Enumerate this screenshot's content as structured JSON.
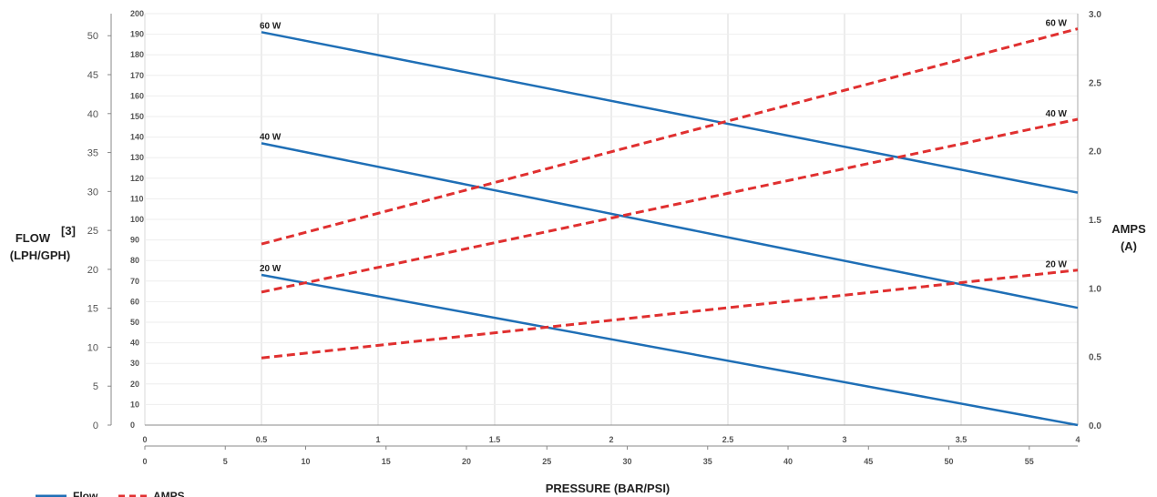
{
  "chart_data": {
    "type": "line",
    "xlabel": "PRESSURE (BAR/PSI)",
    "ylabel_left": "FLOW",
    "ylabel_left_units": "(LPH/GPH)",
    "ylabel_left_note": "[3]",
    "ylabel_right": "AMPS",
    "ylabel_right_units": "(A)",
    "x_bar_range": [
      0,
      4
    ],
    "x_bar_ticks": [
      "0",
      "0.5",
      "1",
      "1.5",
      "2",
      "2.5",
      "3",
      "3.5",
      "4"
    ],
    "x_psi_ticks": [
      "0",
      "5",
      "10",
      "15",
      "20",
      "25",
      "30",
      "35",
      "40",
      "45",
      "50",
      "55"
    ],
    "y_lph_range": [
      0,
      200
    ],
    "y_lph_ticks": [
      "0",
      "10",
      "20",
      "30",
      "40",
      "50",
      "60",
      "70",
      "80",
      "90",
      "100",
      "110",
      "120",
      "130",
      "140",
      "150",
      "160",
      "170",
      "180",
      "190",
      "200"
    ],
    "y_gph_ticks": [
      "0",
      "5",
      "10",
      "15",
      "20",
      "25",
      "30",
      "35",
      "40",
      "45",
      "50"
    ],
    "y_amps_range": [
      0,
      3
    ],
    "y_amps_ticks": [
      "0.0",
      "0.5",
      "1.0",
      "1.5",
      "2.0",
      "2.5",
      "3.0"
    ],
    "grid": true,
    "legend": {
      "position": "bottom-left",
      "entries": [
        "Flow",
        "AMPS"
      ]
    },
    "colors": {
      "flow": "#1f6fb6",
      "amps": "#e03030",
      "grid": "#d9d9d9"
    },
    "series": [
      {
        "name": "Flow",
        "label": "60 W",
        "axis": "lph",
        "x": [
          0.5,
          4
        ],
        "y": [
          191,
          113
        ]
      },
      {
        "name": "Flow",
        "label": "40 W",
        "axis": "lph",
        "x": [
          0.5,
          4
        ],
        "y": [
          137,
          57
        ]
      },
      {
        "name": "Flow",
        "label": "20 W",
        "axis": "lph",
        "x": [
          0.5,
          4
        ],
        "y": [
          73,
          0
        ]
      },
      {
        "name": "AMPS",
        "label": "60 W",
        "axis": "amps",
        "x": [
          0.5,
          4
        ],
        "y": [
          1.32,
          2.89
        ]
      },
      {
        "name": "AMPS",
        "label": "40 W",
        "axis": "amps",
        "x": [
          0.5,
          4
        ],
        "y": [
          0.97,
          2.23
        ]
      },
      {
        "name": "AMPS",
        "label": "20 W",
        "axis": "amps",
        "x": [
          0.5,
          4
        ],
        "y": [
          0.49,
          1.13
        ]
      }
    ]
  }
}
